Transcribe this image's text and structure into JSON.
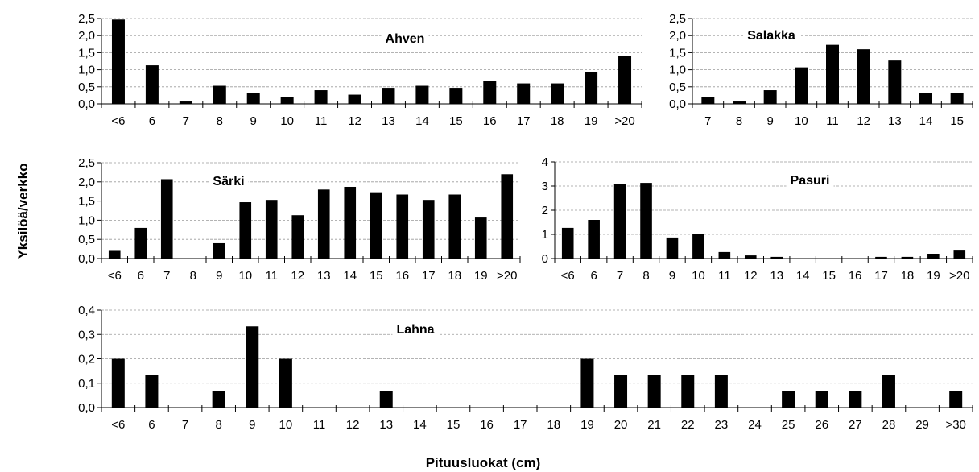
{
  "figure": {
    "ylabel": "Yksilöä/verkko",
    "xlabel": "Pituusluokat (cm)"
  },
  "chart_data": [
    {
      "type": "bar",
      "title": "Ahven",
      "categories": [
        "<6",
        "6",
        "7",
        "8",
        "9",
        "10",
        "11",
        "12",
        "13",
        "14",
        "15",
        "16",
        "17",
        "18",
        "19",
        ">20"
      ],
      "values": [
        2.47,
        1.13,
        0.07,
        0.53,
        0.33,
        0.2,
        0.4,
        0.27,
        0.47,
        0.53,
        0.47,
        0.67,
        0.6,
        0.6,
        0.93,
        1.4
      ],
      "ylim": [
        0,
        2.5
      ],
      "yticks": [
        "0,0",
        "0,5",
        "1,0",
        "1,5",
        "2,0",
        "2,5"
      ],
      "ytick_values": [
        0,
        0.5,
        1,
        1.5,
        2,
        2.5
      ],
      "grid": true
    },
    {
      "type": "bar",
      "title": "Salakka",
      "categories": [
        "7",
        "8",
        "9",
        "10",
        "11",
        "12",
        "13",
        "14",
        "15"
      ],
      "values": [
        0.2,
        0.07,
        0.4,
        1.07,
        1.73,
        1.6,
        1.27,
        0.33,
        0.33
      ],
      "ylim": [
        0,
        2.5
      ],
      "yticks": [
        "0,0",
        "0,5",
        "1,0",
        "1,5",
        "2,0",
        "2,5"
      ],
      "ytick_values": [
        0,
        0.5,
        1,
        1.5,
        2,
        2.5
      ],
      "grid": true
    },
    {
      "type": "bar",
      "title": "Särki",
      "categories": [
        "<6",
        "6",
        "7",
        "8",
        "9",
        "10",
        "11",
        "12",
        "13",
        "14",
        "15",
        "16",
        "17",
        "18",
        "19",
        ">20"
      ],
      "values": [
        0.2,
        0.8,
        2.07,
        0,
        0.4,
        1.47,
        1.53,
        1.13,
        1.8,
        1.87,
        1.73,
        1.67,
        1.53,
        1.67,
        1.07,
        2.2
      ],
      "ylim": [
        0,
        2.5
      ],
      "yticks": [
        "0,0",
        "0,5",
        "1,0",
        "1,5",
        "2,0",
        "2,5"
      ],
      "ytick_values": [
        0,
        0.5,
        1,
        1.5,
        2,
        2.5
      ],
      "grid": true
    },
    {
      "type": "bar",
      "title": "Pasuri",
      "categories": [
        "<6",
        "6",
        "7",
        "8",
        "9",
        "10",
        "11",
        "12",
        "13",
        "14",
        "15",
        "16",
        "17",
        "18",
        "19",
        ">20"
      ],
      "values": [
        1.27,
        1.6,
        3.07,
        3.13,
        0.87,
        1.0,
        0.27,
        0.13,
        0.07,
        0,
        0,
        0,
        0.07,
        0.07,
        0.2,
        0.33
      ],
      "ylim": [
        0,
        4
      ],
      "yticks": [
        "0",
        "1",
        "2",
        "3",
        "4"
      ],
      "ytick_values": [
        0,
        1,
        2,
        3,
        4
      ],
      "grid": true
    },
    {
      "type": "bar",
      "title": "Lahna",
      "categories": [
        "<6",
        "6",
        "7",
        "8",
        "9",
        "10",
        "11",
        "12",
        "13",
        "14",
        "15",
        "16",
        "17",
        "18",
        "19",
        "20",
        "21",
        "22",
        "23",
        "24",
        "25",
        "26",
        "27",
        "28",
        "29",
        ">30"
      ],
      "values": [
        0.2,
        0.133,
        0,
        0.067,
        0.333,
        0.2,
        0,
        0,
        0.067,
        0,
        0,
        0,
        0,
        0,
        0.2,
        0.133,
        0.133,
        0.133,
        0.133,
        0,
        0.067,
        0.067,
        0.067,
        0.133,
        0,
        0.067
      ],
      "ylim": [
        0,
        0.4
      ],
      "yticks": [
        "0,0",
        "0,1",
        "0,2",
        "0,3",
        "0,4"
      ],
      "ytick_values": [
        0,
        0.1,
        0.2,
        0.3,
        0.4
      ],
      "grid": true
    }
  ]
}
